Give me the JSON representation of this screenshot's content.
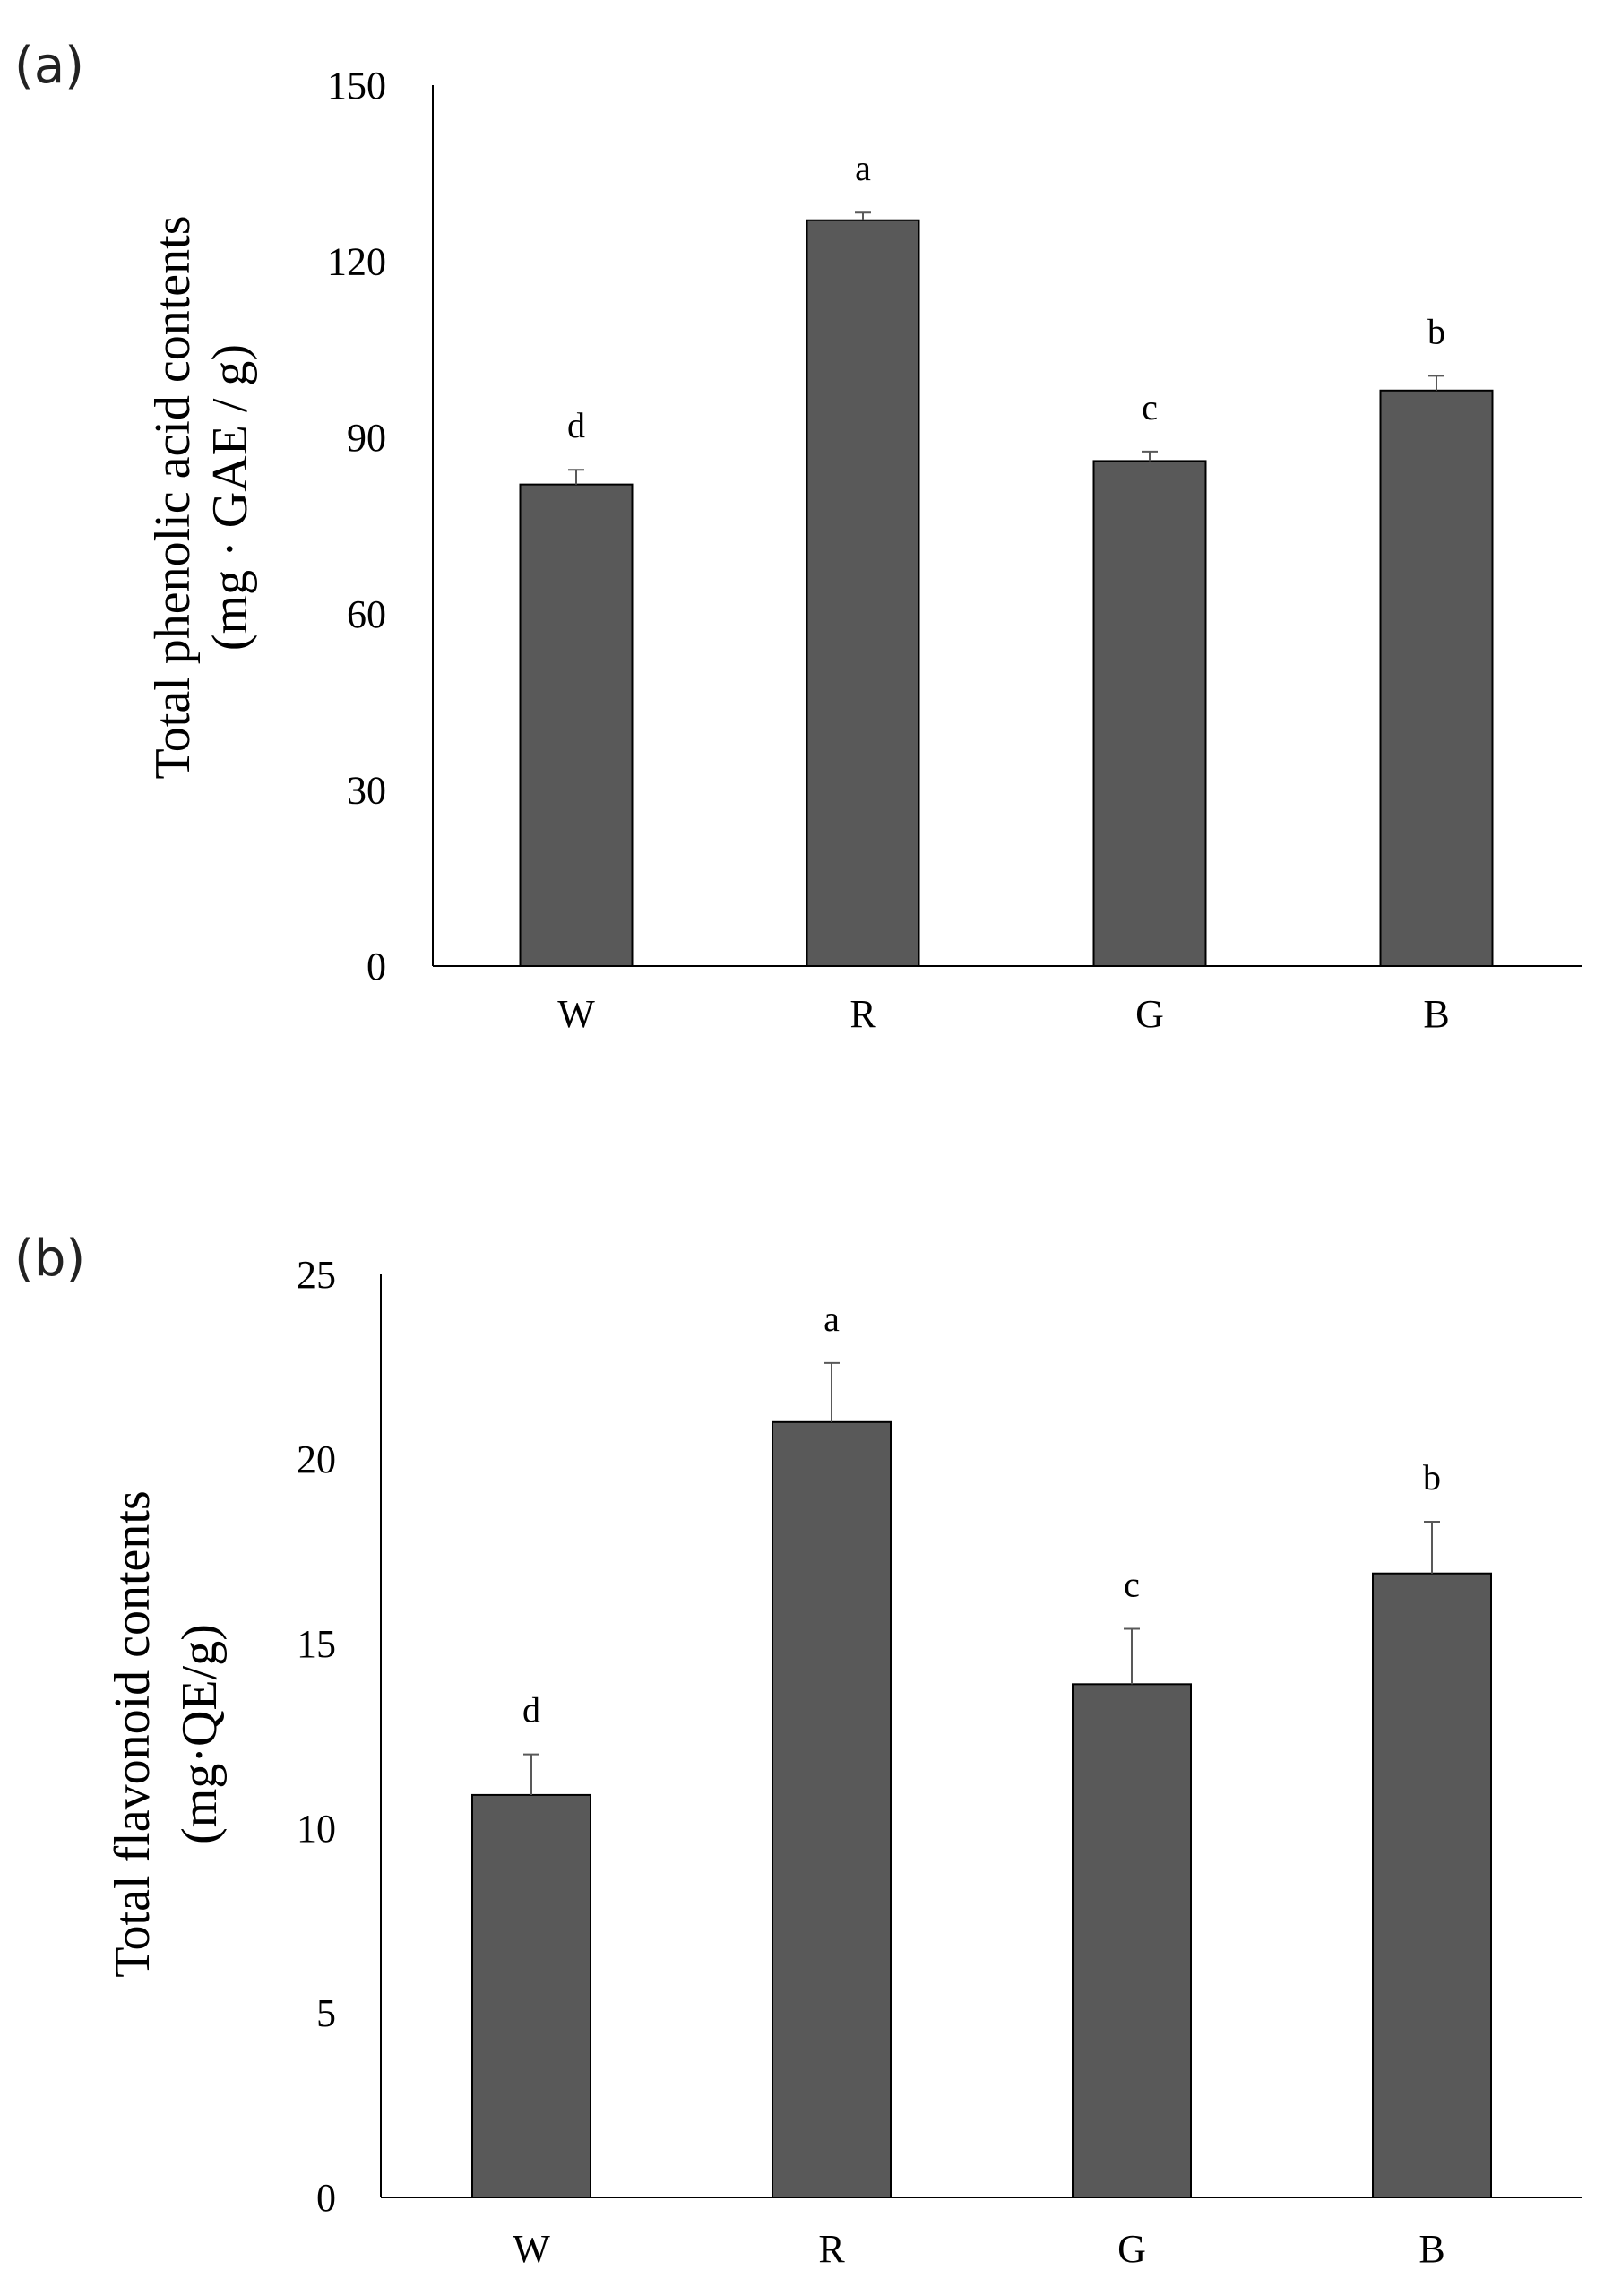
{
  "chart_data": [
    {
      "type": "bar",
      "panel_label": "(a)",
      "categories": [
        "W",
        "R",
        "G",
        "B"
      ],
      "values": [
        82,
        127,
        86,
        98
      ],
      "errors": [
        2.5,
        1.3,
        1.6,
        2.5
      ],
      "significance": [
        "d",
        "a",
        "c",
        "b"
      ],
      "ylabel_line1": "Total phenolic acid contents",
      "ylabel_line2": "(mg · GAE / g)",
      "ylim": [
        0,
        150
      ],
      "yticks": [
        0,
        30,
        60,
        90,
        120,
        150
      ],
      "ytick_labels": [
        "0",
        "30",
        "60",
        "90",
        "120",
        "150"
      ],
      "bar_color": "#595959",
      "grid": false
    },
    {
      "type": "bar",
      "panel_label": "(b)",
      "categories": [
        "W",
        "R",
        "G",
        "B"
      ],
      "values": [
        10.9,
        21.0,
        13.9,
        16.9
      ],
      "errors": [
        1.1,
        1.6,
        1.5,
        1.4
      ],
      "significance": [
        "d",
        "a",
        "c",
        "b"
      ],
      "ylabel_line1": "Total flavonoid contents",
      "ylabel_line2": "(mg·QE/g)",
      "ylim": [
        0,
        25
      ],
      "yticks": [
        0,
        5,
        10,
        15,
        20,
        25
      ],
      "ytick_labels": [
        "0",
        "5",
        "10",
        "15",
        "20",
        "25"
      ],
      "bar_color": "#595959",
      "grid": false
    }
  ]
}
